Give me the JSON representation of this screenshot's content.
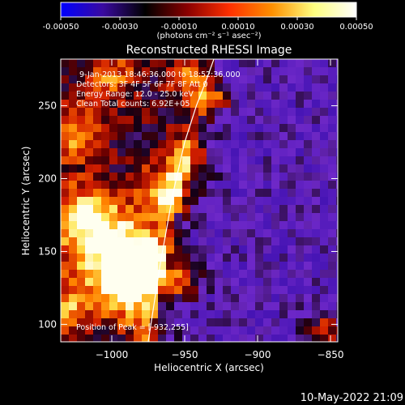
{
  "colorbar": {
    "ticks": [
      "-0.00050",
      "-0.00030",
      "-0.00010",
      "0.00010",
      "0.00030",
      "0.00050"
    ],
    "range": [
      -0.0005,
      0.0005
    ],
    "unit_label": "(photons cm⁻² s⁻¹ asec⁻²)",
    "colors": [
      "#0000ff",
      "#3a0aa0",
      "#000000",
      "#8a0000",
      "#ff3000",
      "#ff9000",
      "#ffff80",
      "#ffffff"
    ]
  },
  "chart_data": {
    "type": "heatmap",
    "title": "Reconstructed RHESSI Image",
    "xlabel": "Heliocentric X (arcsec)",
    "ylabel": "Heliocentric Y (arcsec)",
    "xlim": [
      -1035,
      -845
    ],
    "ylim": [
      88,
      282
    ],
    "x_ticks": [
      -1000,
      -950,
      -900,
      -850
    ],
    "x_tick_labels": [
      "−1000",
      "−950",
      "−900",
      "−850"
    ],
    "y_ticks": [
      100,
      150,
      200,
      250
    ],
    "y_tick_labels": [
      "100",
      "150",
      "200",
      "250"
    ],
    "annotations": [
      "9-Jan-2013 18:46:36.000 to 18:52:36.000",
      "Detectors: 3F 4F 5F 6F 7F 8F Att 0",
      "Energy Range: 12.0 - 25.0 keV",
      "Clean     Total counts: 6.92E+05",
      "Position of Peak = [-932,255]"
    ],
    "limb_x": [
      -975,
      -967,
      -958,
      -950,
      -942,
      -935,
      -930
    ],
    "limb_y": [
      88,
      140,
      190,
      225,
      250,
      268,
      282
    ],
    "grid": false
  },
  "footer": {
    "timestamp": "10-May-2022 21:09"
  }
}
